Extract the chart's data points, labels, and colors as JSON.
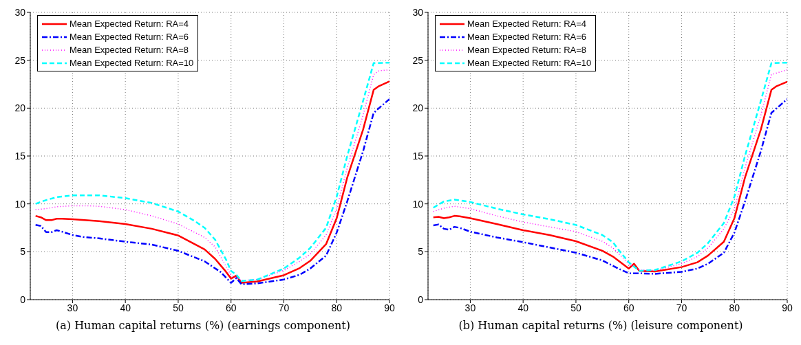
{
  "chart_data": [
    {
      "type": "line",
      "xlabel": "(a) Human capital returns (%) (earnings component)",
      "xlim": [
        22,
        90
      ],
      "xticks": [
        30,
        40,
        50,
        60,
        70,
        80,
        90
      ],
      "ylim": [
        0,
        30
      ],
      "yticks": [
        0,
        5,
        10,
        15,
        20,
        25,
        30
      ],
      "grid": true,
      "legend": "top left",
      "series": [
        {
          "name": "Mean Expected Return: RA=4",
          "color": "#ff0000",
          "line_style": "solid",
          "x": [
            23,
            24,
            25,
            26,
            27,
            28,
            30,
            35,
            40,
            45,
            50,
            55,
            57,
            58,
            59,
            60,
            61,
            62,
            65,
            70,
            73,
            75,
            78,
            80,
            82,
            85,
            87,
            88,
            90
          ],
          "values": [
            8.75,
            8.6,
            8.3,
            8.3,
            8.45,
            8.45,
            8.4,
            8.2,
            7.9,
            7.4,
            6.7,
            5.25,
            4.25,
            3.6,
            2.95,
            2.2,
            2.5,
            1.75,
            1.9,
            2.55,
            3.3,
            4.05,
            5.8,
            8.5,
            12.75,
            17.75,
            21.9,
            22.3,
            22.8
          ]
        },
        {
          "name": "Mean Expected Return: RA=6",
          "color": "#0000ff",
          "line_style": "dashdot",
          "x": [
            23,
            24,
            25,
            26,
            27,
            28,
            30,
            32,
            35,
            40,
            45,
            50,
            55,
            58,
            60,
            61,
            62,
            65,
            70,
            73,
            75,
            78,
            80,
            82,
            85,
            87,
            88,
            90
          ],
          "values": [
            7.8,
            7.7,
            7.05,
            7.05,
            7.25,
            7.1,
            6.75,
            6.55,
            6.4,
            6.05,
            5.75,
            5.1,
            4.0,
            2.9,
            1.75,
            2.25,
            1.6,
            1.7,
            2.1,
            2.6,
            3.25,
            4.6,
            7.0,
            10.25,
            15.5,
            19.5,
            20,
            20.95
          ]
        },
        {
          "name": "Mean Expected Return: RA=8",
          "color": "#ff00ff",
          "line_style": "dotted",
          "x": [
            23,
            25,
            27,
            30,
            33,
            35,
            40,
            45,
            50,
            55,
            57,
            60,
            62,
            65,
            70,
            73,
            75,
            78,
            80,
            82,
            85,
            87,
            88,
            90
          ],
          "values": [
            9.4,
            9.5,
            9.7,
            9.8,
            9.8,
            9.75,
            9.4,
            8.75,
            7.9,
            6.5,
            5.5,
            2.55,
            2.0,
            2.1,
            3.05,
            4.0,
            4.75,
            6.75,
            9.5,
            13.75,
            19.25,
            23.5,
            23.9,
            24
          ]
        },
        {
          "name": "Mean Expected Return: RA=10",
          "color": "#00ffff",
          "line_style": "dashed",
          "x": [
            23,
            25,
            27,
            30,
            35,
            40,
            45,
            50,
            53,
            55,
            57,
            59,
            60,
            61,
            62,
            65,
            70,
            73,
            75,
            78,
            80,
            82,
            85,
            87,
            90
          ],
          "values": [
            10,
            10.4,
            10.7,
            10.9,
            10.9,
            10.6,
            10.1,
            9.2,
            8.25,
            7.5,
            6.25,
            4.25,
            3,
            2.6,
            1.95,
            2.1,
            3.25,
            4.4,
            5.4,
            7.5,
            10.75,
            15,
            20.75,
            24.7,
            24.75
          ]
        }
      ]
    },
    {
      "type": "line",
      "xlabel": "(b) Human capital returns (%) (leisure component)",
      "xlim": [
        22,
        90
      ],
      "xticks": [
        30,
        40,
        50,
        60,
        70,
        80,
        90
      ],
      "ylim": [
        0,
        30
      ],
      "yticks": [
        0,
        5,
        10,
        15,
        20,
        25,
        30
      ],
      "grid": true,
      "legend": "top left",
      "series": [
        {
          "name": "Mean Expected Return: RA=4",
          "color": "#ff0000",
          "line_style": "solid",
          "x": [
            23,
            24,
            25,
            26,
            27,
            28,
            30,
            35,
            40,
            45,
            50,
            55,
            57,
            60,
            61,
            62,
            65,
            70,
            73,
            75,
            78,
            80,
            82,
            85,
            87,
            88,
            90
          ],
          "values": [
            8.6,
            8.65,
            8.5,
            8.6,
            8.75,
            8.7,
            8.5,
            7.9,
            7.25,
            6.75,
            6.1,
            5.1,
            4.5,
            3.25,
            3.75,
            3,
            2.95,
            3.4,
            3.9,
            4.6,
            6.05,
            8.5,
            12.75,
            17.75,
            21.9,
            22.3,
            22.75
          ]
        },
        {
          "name": "Mean Expected Return: RA=6",
          "color": "#0000ff",
          "line_style": "dashdot",
          "x": [
            23,
            24,
            25,
            26,
            27,
            28,
            30,
            35,
            40,
            45,
            50,
            55,
            58,
            60,
            62,
            65,
            70,
            73,
            75,
            78,
            80,
            82,
            85,
            87,
            90
          ],
          "values": [
            7.75,
            7.85,
            7.4,
            7.3,
            7.6,
            7.5,
            7.1,
            6.5,
            6,
            5.45,
            4.9,
            4.1,
            3.25,
            2.75,
            2.75,
            2.7,
            2.9,
            3.25,
            3.75,
            4.9,
            7,
            10.25,
            15.5,
            19.5,
            20.95
          ]
        },
        {
          "name": "Mean Expected Return: RA=8",
          "color": "#ff00ff",
          "line_style": "dotted",
          "x": [
            23,
            25,
            27,
            30,
            35,
            40,
            45,
            50,
            55,
            57,
            60,
            62,
            65,
            70,
            73,
            75,
            78,
            80,
            82,
            85,
            87,
            90
          ],
          "values": [
            9.2,
            9.55,
            9.75,
            9.5,
            8.75,
            8.1,
            7.6,
            7.1,
            6.1,
            5.4,
            3.75,
            3.1,
            3.05,
            3.75,
            4.5,
            5.4,
            7.4,
            9.5,
            13.75,
            19.25,
            23.5,
            24
          ]
        },
        {
          "name": "Mean Expected Return: RA=10",
          "color": "#00ffff",
          "line_style": "dashed",
          "x": [
            23,
            25,
            27,
            30,
            35,
            40,
            45,
            50,
            55,
            57,
            58,
            60,
            62,
            65,
            70,
            73,
            75,
            78,
            80,
            82,
            85,
            87,
            90
          ],
          "values": [
            9.6,
            10.25,
            10.45,
            10.2,
            9.5,
            8.9,
            8.4,
            7.8,
            6.75,
            6,
            5.25,
            3.9,
            3,
            3.1,
            4,
            4.9,
            5.9,
            8,
            10.75,
            15,
            20.75,
            24.7,
            24.75
          ]
        }
      ]
    }
  ]
}
